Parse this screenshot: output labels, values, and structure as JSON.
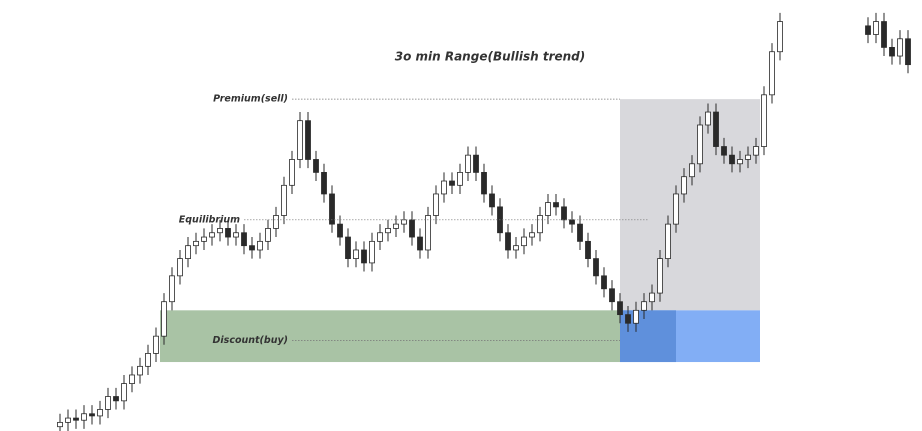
{
  "chart_data": {
    "type": "candlestick",
    "title": "3o min Range(Bullish trend)",
    "ylim": [
      0,
      100
    ],
    "up_color": "#ffffff",
    "down_color": "#2a2a2a",
    "wick_color": "#2a2a2a",
    "open": [
      1,
      2,
      3,
      2.5,
      4,
      3.5,
      5,
      8,
      7,
      11,
      13,
      15,
      18,
      22,
      30,
      36,
      40,
      43,
      44,
      45,
      46,
      47,
      45,
      46,
      43,
      42,
      44,
      47,
      50,
      57,
      63,
      72,
      63,
      60,
      55,
      48,
      45,
      40,
      42,
      39,
      44,
      46,
      47,
      48,
      49,
      45,
      42,
      50,
      55,
      58,
      57,
      60,
      64,
      60,
      55,
      52,
      46,
      42,
      43,
      45,
      46,
      50,
      53,
      52,
      49,
      48,
      44,
      40,
      36,
      33,
      30,
      27,
      25,
      28,
      30,
      32,
      40,
      48,
      55,
      59,
      62,
      71,
      74,
      66,
      64,
      62,
      63,
      64,
      66,
      78,
      88,
      null,
      null,
      null,
      null,
      null,
      null,
      null,
      null,
      null,
      null,
      94,
      92,
      95,
      89,
      87,
      91
    ],
    "high": [
      4,
      5,
      5,
      6,
      6,
      7,
      10,
      10,
      13,
      15,
      17,
      20,
      24,
      32,
      38,
      42,
      45,
      46,
      47,
      48,
      49,
      49,
      48,
      48,
      45,
      46,
      49,
      52,
      59,
      65,
      74,
      74,
      65,
      62,
      57,
      50,
      47,
      44,
      44,
      46,
      48,
      49,
      50,
      51,
      51,
      47,
      52,
      57,
      60,
      60,
      62,
      66,
      66,
      62,
      57,
      54,
      48,
      45,
      47,
      48,
      52,
      55,
      55,
      54,
      51,
      50,
      46,
      42,
      38,
      35,
      32,
      29,
      30,
      32,
      34,
      42,
      50,
      57,
      61,
      64,
      73,
      76,
      76,
      68,
      66,
      65,
      66,
      68,
      80,
      90,
      97,
      null,
      null,
      null,
      null,
      null,
      null,
      null,
      null,
      null,
      null,
      96,
      97,
      97,
      91,
      93,
      93
    ],
    "low": [
      0,
      0,
      0.5,
      0.5,
      1.5,
      1.5,
      3,
      5,
      5,
      9,
      11,
      13,
      16,
      20,
      28,
      34,
      38,
      41,
      42,
      43,
      44,
      43,
      43,
      41,
      40,
      40,
      42,
      45,
      48,
      55,
      61,
      61,
      58,
      53,
      46,
      43,
      38,
      38,
      37,
      37,
      42,
      44,
      45,
      46,
      43,
      40,
      40,
      48,
      53,
      55,
      55,
      58,
      58,
      53,
      50,
      44,
      40,
      40,
      41,
      43,
      44,
      48,
      50,
      47,
      46,
      42,
      38,
      34,
      31,
      28,
      25,
      23,
      23,
      26,
      28,
      30,
      38,
      46,
      53,
      57,
      60,
      69,
      64,
      62,
      60,
      60,
      61,
      62,
      64,
      76,
      86,
      null,
      null,
      null,
      null,
      null,
      null,
      null,
      null,
      null,
      null,
      90,
      90,
      87,
      85,
      85,
      83
    ],
    "close": [
      2,
      3,
      2.5,
      4,
      3.5,
      5,
      8,
      7,
      11,
      13,
      15,
      18,
      22,
      30,
      36,
      40,
      43,
      44,
      45,
      46,
      47,
      45,
      46,
      43,
      42,
      44,
      47,
      50,
      57,
      63,
      72,
      63,
      60,
      55,
      48,
      45,
      40,
      42,
      39,
      44,
      46,
      47,
      48,
      49,
      45,
      42,
      50,
      55,
      58,
      57,
      60,
      64,
      60,
      55,
      52,
      46,
      42,
      43,
      45,
      46,
      50,
      53,
      52,
      49,
      48,
      44,
      40,
      36,
      33,
      30,
      27,
      25,
      28,
      30,
      32,
      40,
      48,
      55,
      59,
      62,
      71,
      74,
      66,
      64,
      62,
      63,
      64,
      66,
      78,
      88,
      95,
      null,
      null,
      null,
      null,
      null,
      null,
      null,
      null,
      null,
      null,
      92,
      95,
      89,
      87,
      91,
      85
    ],
    "zones": [
      {
        "top": 77,
        "bottom": 28,
        "start": 70,
        "end": 87.5,
        "color": "#d8d8dc"
      },
      {
        "top": 28,
        "bottom": 16,
        "start": 12.5,
        "end": 70,
        "color": "#a9c3a5"
      },
      {
        "top": 28,
        "bottom": 16,
        "start": 70,
        "end": 87.5,
        "color": "#82aef5"
      },
      {
        "top": 28,
        "bottom": 16,
        "start": 70,
        "end": 77,
        "color": "#5f90dc"
      }
    ],
    "levels": [
      {
        "label": "Premium(sell)",
        "value": 77,
        "start": 29,
        "end": 70
      },
      {
        "label": "Equilibrium",
        "value": 49,
        "start": 23,
        "end": 73.5
      },
      {
        "label": "Discount(buy)",
        "value": 21,
        "start": 29,
        "end": 70
      }
    ]
  }
}
